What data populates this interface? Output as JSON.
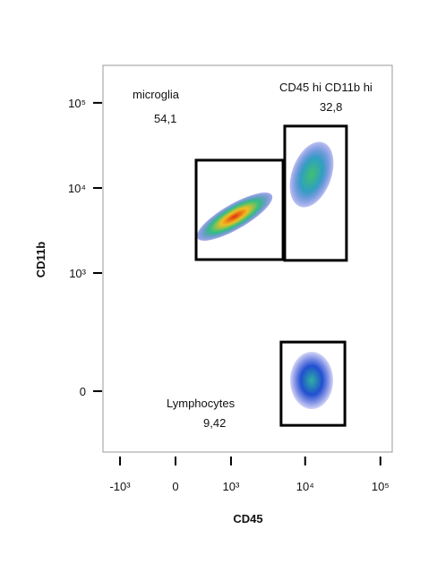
{
  "chart_data": {
    "type": "flow-gates",
    "xlabel": "CD45",
    "ylabel": "CD11b",
    "xticks": [
      {
        "value": -1000,
        "label": "-10³"
      },
      0,
      {
        "value": 1000,
        "label": "10³"
      },
      {
        "value": 10000,
        "label": "10⁴"
      },
      {
        "value": 100000,
        "label": "10⁵"
      }
    ],
    "yticks": [
      0,
      {
        "value": 1000,
        "label": "10³"
      },
      {
        "value": 10000,
        "label": "10⁴"
      },
      {
        "value": 100000,
        "label": "10⁵"
      }
    ],
    "gates": [
      {
        "name": "microglia",
        "value": 54.1,
        "value_label": "54,1",
        "x": [
          255,
          5080
        ],
        "y": [
          1440,
          21200
        ]
      },
      {
        "name": "CD45 hi CD11b hi",
        "value": 32.8,
        "value_label": "32,8",
        "x": [
          5350,
          35400
        ],
        "y": [
          1410,
          53300
        ]
      },
      {
        "name": "Lymphocytes",
        "value": 9.42,
        "value_label": "9,42",
        "x": [
          4780,
          33700
        ],
        "y": [
          -87,
          144
        ]
      }
    ]
  }
}
